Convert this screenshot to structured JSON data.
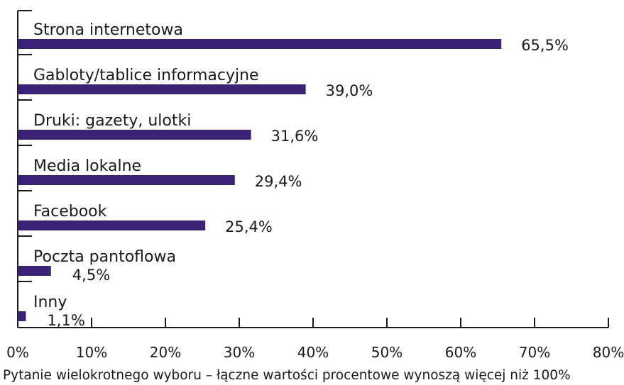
{
  "chart_data": {
    "type": "bar",
    "orientation": "horizontal",
    "categories": [
      "Strona internetowa",
      "Gabloty/tablice informacyjne",
      "Druki: gazety, ulotki",
      "Media lokalne",
      "Facebook",
      "Poczta pantoflowa",
      "Inny"
    ],
    "values": [
      65.5,
      39.0,
      31.6,
      29.4,
      25.4,
      4.5,
      1.1
    ],
    "data_labels": [
      "65,5%",
      "39,0%",
      "31,6%",
      "29,4%",
      "25,4%",
      "4,5%",
      "1,1%"
    ],
    "xlim": [
      0,
      80
    ],
    "x_ticks": [
      0,
      10,
      20,
      30,
      40,
      50,
      60,
      70,
      80
    ],
    "x_tick_labels": [
      "0%",
      "10%",
      "20%",
      "30%",
      "40%",
      "50%",
      "60%",
      "70%",
      "80%"
    ],
    "bar_color": "#3b2276",
    "grid": false,
    "footnote": "Pytanie wielokrotnego wyboru – łączne wartości procentowe wynoszą więcej niż 100%"
  }
}
